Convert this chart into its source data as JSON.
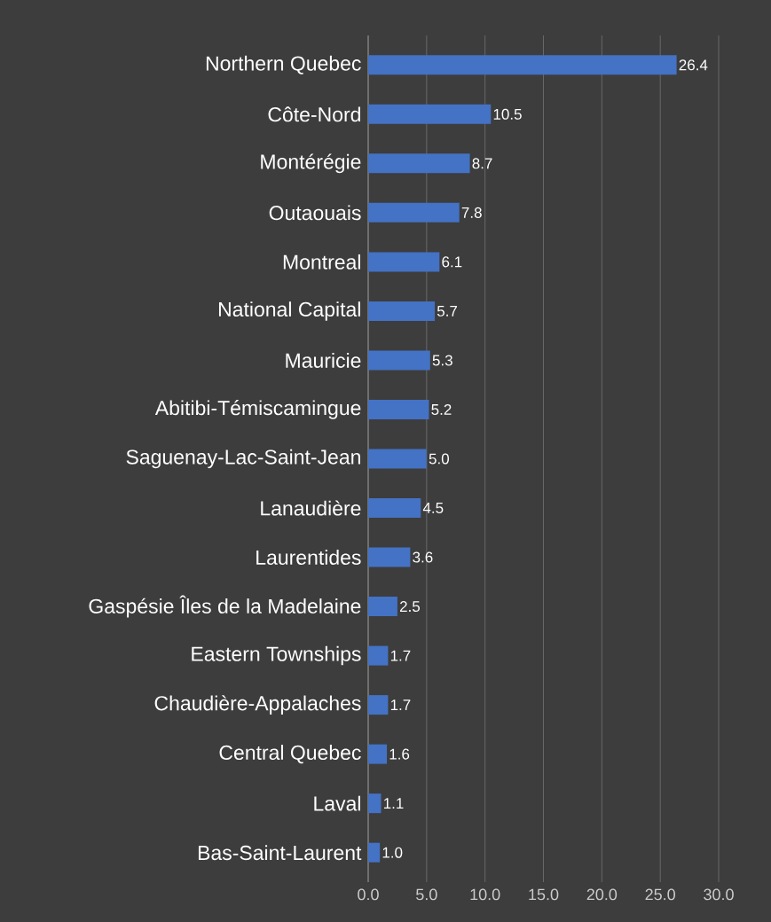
{
  "chart_data": {
    "type": "bar",
    "orientation": "horizontal",
    "categories": [
      "Northern Quebec",
      "Côte-Nord",
      "Montérégie",
      "Outaouais",
      "Montreal",
      "National Capital",
      "Mauricie",
      "Abitibi-Témiscamingue",
      "Saguenay-Lac-Saint-Jean",
      "Lanaudière",
      "Laurentides",
      "Gaspésie Îles de la Madelaine",
      "Eastern Townships",
      "Chaudière-Appalaches",
      "Central Quebec",
      "Laval",
      "Bas-Saint-Laurent"
    ],
    "values": [
      26.4,
      10.5,
      8.7,
      7.8,
      6.1,
      5.7,
      5.3,
      5.2,
      5.0,
      4.5,
      3.6,
      2.5,
      1.7,
      1.7,
      1.6,
      1.1,
      1.0
    ],
    "color": "#4472c4",
    "xlim": [
      0,
      30
    ],
    "xticks": [
      {
        "value": 0,
        "label": "0.0"
      },
      {
        "value": 5,
        "label": "5.0"
      },
      {
        "value": 10,
        "label": "10.0"
      },
      {
        "value": 15,
        "label": "15.0"
      },
      {
        "value": 20,
        "label": "20.0"
      },
      {
        "value": 25,
        "label": "25.0"
      },
      {
        "value": 30,
        "label": "30.0"
      }
    ],
    "grid": "x",
    "value_labels": [
      "26.4",
      "10.5",
      "8.7",
      "7.8",
      "6.1",
      "5.7",
      "5.3",
      "5.2",
      "5.0",
      "4.5",
      "3.6",
      "2.5",
      "1.7",
      "1.7",
      "1.6",
      "1.1",
      "1.0"
    ]
  }
}
